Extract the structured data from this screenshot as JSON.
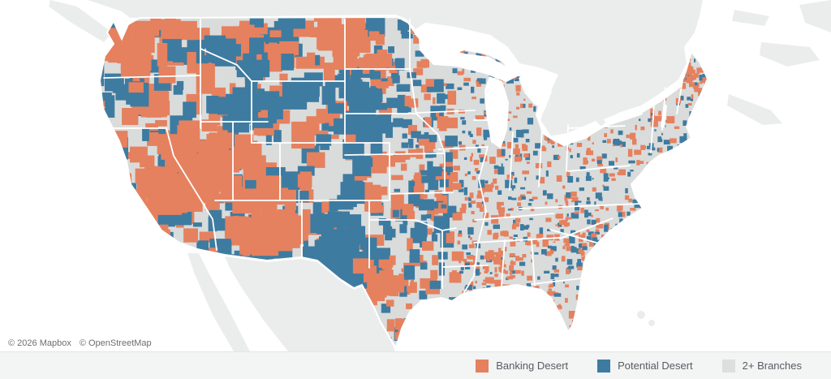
{
  "attribution": {
    "mapbox_label": "© 2026 Mapbox",
    "osm_label": "© OpenStreetMap"
  },
  "legend": {
    "items": [
      {
        "label": "Banking Desert",
        "color": "#E5815F"
      },
      {
        "label": "Potential Desert",
        "color": "#3E7BA1"
      },
      {
        "label": "2+ Branches",
        "color": "#DCDFDE"
      }
    ]
  },
  "map": {
    "type": "choropleth",
    "region": "United States",
    "categories": [
      "Banking Desert",
      "Potential Desert",
      "2+ Branches"
    ],
    "colors": {
      "banking_desert": "#E5815F",
      "potential_desert": "#3E7BA1",
      "two_plus_branches": "#D9DCDB",
      "water": "#FFFFFF",
      "non_us_land": "#EBEDEC",
      "state_border": "#FFFFFF"
    }
  }
}
